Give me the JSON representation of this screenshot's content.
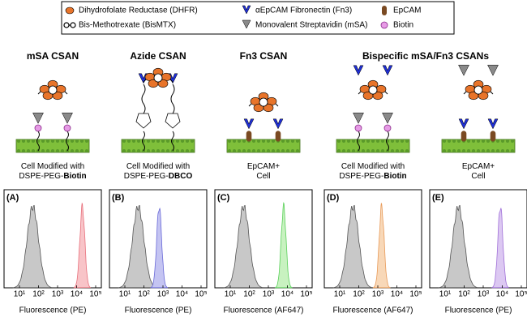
{
  "legend": [
    {
      "label": "Dihydrofolate Reductase (DHFR)",
      "icon": "dhfr"
    },
    {
      "label": "αEpCAM Fibronectin (Fn3)",
      "icon": "fn3"
    },
    {
      "label": "EpCAM",
      "icon": "epcam"
    },
    {
      "label": "Bis-Methotrexate (BisMTX)",
      "icon": "bismtx"
    },
    {
      "label": "Monovalent Streptavidin (mSA)",
      "icon": "msa"
    },
    {
      "label": "Biotin",
      "icon": "biotin"
    }
  ],
  "titles": [
    "mSA CSAN",
    "Azide CSAN",
    "Fn3 CSAN",
    "Bispecific mSA/Fn3 CSANs"
  ],
  "ticks": [
    "10¹",
    "10²",
    "10³",
    "10⁴",
    "10⁵"
  ],
  "panels": [
    {
      "label": "(A)",
      "xlabel": "Fluorescence (PE)",
      "caption": [
        {
          "text": "Cell Modified with"
        },
        {
          "text": "DSPE-PEG-",
          "bold": "Biotin"
        }
      ]
    },
    {
      "label": "(B)",
      "xlabel": "Fluorescence (PE)",
      "caption": [
        {
          "text": "Cell Modified with"
        },
        {
          "text": "DSPE-PEG-",
          "bold": "DBCO"
        }
      ]
    },
    {
      "label": "(C)",
      "xlabel": "Fluorescence (AF647)",
      "caption": [
        {
          "text": "EpCAM+"
        },
        {
          "text": "Cell"
        }
      ]
    },
    {
      "label": "(D)",
      "xlabel": "Fluorescence (AF647)",
      "caption": [
        {
          "text": "Cell Modified with"
        },
        {
          "text": "DSPE-PEG-",
          "bold": "Biotin"
        }
      ]
    },
    {
      "label": "(E)",
      "xlabel": "Fluorescence (PE)",
      "caption": [
        {
          "text": "EpCAM+"
        },
        {
          "text": "Cell"
        }
      ]
    }
  ]
}
